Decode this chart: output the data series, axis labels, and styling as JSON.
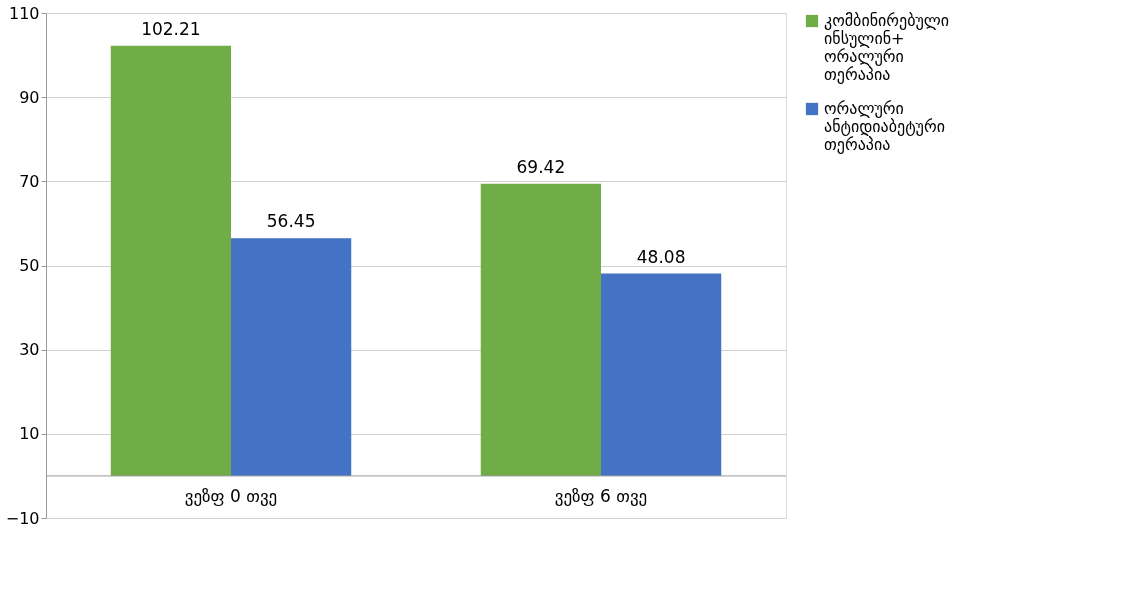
{
  "chart_data": {
    "type": "bar",
    "categories": [
      "ვეზფ 0 თვე",
      "ვეზფ 6 თვე"
    ],
    "series": [
      {
        "name": "კომბინირებული ინსულინ+ ორალური თერაპია",
        "color": "#70ad47",
        "values": [
          102.21,
          69.42
        ]
      },
      {
        "name": "ორალური ანტიდიაბეტური თერაპია",
        "color": "#4472c4",
        "values": [
          56.45,
          48.08
        ]
      }
    ],
    "ylim": [
      -10,
      110
    ],
    "yticks": [
      -10,
      10,
      30,
      50,
      70,
      90,
      110
    ],
    "grid": "y",
    "legend": "right",
    "data_labels": true
  }
}
